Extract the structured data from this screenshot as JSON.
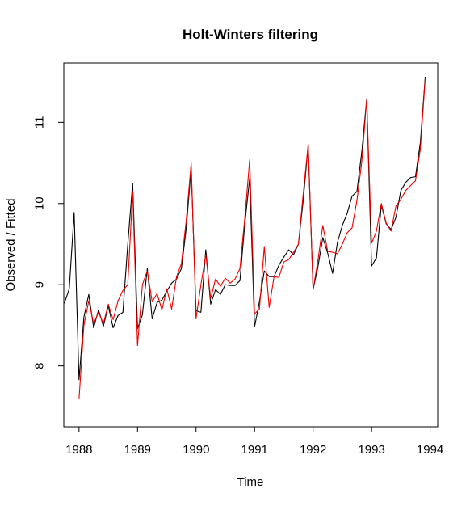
{
  "chart_data": {
    "type": "line",
    "title": "Holt-Winters filtering",
    "xlabel": "Time",
    "ylabel": "Observed / Fitted",
    "xlim": [
      1987.74,
      1994.13
    ],
    "ylim": [
      7.25,
      11.73
    ],
    "x_ticks": [
      1988,
      1989,
      1990,
      1991,
      1992,
      1993,
      1994
    ],
    "y_ticks": [
      8,
      9,
      10,
      11
    ],
    "x_tick_labels": [
      "1988",
      "1989",
      "1990",
      "1991",
      "1992",
      "1993",
      "1994"
    ],
    "y_tick_labels": [
      "8",
      "9",
      "10",
      "11"
    ],
    "grid": false,
    "series": [
      {
        "color": "#000000",
        "x": [
          1987.75,
          1987.8333,
          1987.9167,
          1988.0,
          1988.0833,
          1988.1667,
          1988.25,
          1988.3333,
          1988.4167,
          1988.5,
          1988.5833,
          1988.6667,
          1988.75,
          1988.8333,
          1988.9167,
          1989.0,
          1989.0833,
          1989.1667,
          1989.25,
          1989.3333,
          1989.4167,
          1989.5,
          1989.5833,
          1989.6667,
          1989.75,
          1989.8333,
          1989.9167,
          1990.0,
          1990.0833,
          1990.1667,
          1990.25,
          1990.3333,
          1990.4167,
          1990.5,
          1990.5833,
          1990.6667,
          1990.75,
          1990.8333,
          1990.9167,
          1991.0,
          1991.0833,
          1991.1667,
          1991.25,
          1991.3333,
          1991.4167,
          1991.5,
          1991.5833,
          1991.6667,
          1991.75,
          1991.8333,
          1991.9167,
          1992.0,
          1992.0833,
          1992.1667,
          1992.25,
          1992.3333,
          1992.4167,
          1992.5,
          1992.5833,
          1992.6667,
          1992.75,
          1992.8333,
          1992.9167,
          1993.0,
          1993.0833,
          1993.1667,
          1993.25,
          1993.3333,
          1993.4167,
          1993.5,
          1993.5833,
          1993.6667,
          1993.75,
          1993.8333,
          1993.9167
        ],
        "values": [
          8.77,
          8.95,
          9.89,
          7.83,
          8.6,
          8.88,
          8.47,
          8.69,
          8.49,
          8.74,
          8.47,
          8.62,
          8.66,
          9.5,
          10.25,
          8.46,
          8.63,
          9.2,
          8.58,
          8.78,
          8.81,
          8.92,
          9.02,
          9.07,
          9.2,
          9.7,
          10.44,
          8.68,
          8.66,
          9.43,
          8.76,
          8.94,
          8.88,
          9.0,
          8.99,
          8.99,
          9.05,
          9.75,
          10.31,
          8.48,
          8.79,
          9.17,
          9.1,
          9.1,
          9.24,
          9.34,
          9.43,
          9.37,
          9.5,
          10.05,
          10.72,
          8.94,
          9.22,
          9.58,
          9.39,
          9.14,
          9.52,
          9.73,
          9.88,
          10.09,
          10.15,
          10.64,
          11.29,
          9.23,
          9.33,
          9.98,
          9.75,
          9.68,
          9.83,
          10.16,
          10.26,
          10.32,
          10.33,
          10.75,
          11.56
        ]
      },
      {
        "color": "#ee0000",
        "x": [
          1988.0,
          1988.0833,
          1988.1667,
          1988.25,
          1988.3333,
          1988.4167,
          1988.5,
          1988.5833,
          1988.6667,
          1988.75,
          1988.8333,
          1988.9167,
          1989.0,
          1989.0833,
          1989.1667,
          1989.25,
          1989.3333,
          1989.4167,
          1989.5,
          1989.5833,
          1989.6667,
          1989.75,
          1989.8333,
          1989.9167,
          1990.0,
          1990.0833,
          1990.1667,
          1990.25,
          1990.3333,
          1990.4167,
          1990.5,
          1990.5833,
          1990.6667,
          1990.75,
          1990.8333,
          1990.9167,
          1991.0,
          1991.0833,
          1991.1667,
          1991.25,
          1991.3333,
          1991.4167,
          1991.5,
          1991.5833,
          1991.6667,
          1991.75,
          1991.8333,
          1991.9167,
          1992.0,
          1992.0833,
          1992.1667,
          1992.25,
          1992.3333,
          1992.4167,
          1992.5,
          1992.5833,
          1992.6667,
          1992.75,
          1992.8333,
          1992.9167,
          1993.0,
          1993.0833,
          1993.1667,
          1993.25,
          1993.3333,
          1993.4167,
          1993.5,
          1993.5833,
          1993.6667,
          1993.75,
          1993.8333,
          1993.9167
        ],
        "values": [
          7.59,
          8.5,
          8.8,
          8.52,
          8.66,
          8.52,
          8.76,
          8.57,
          8.8,
          8.93,
          9.0,
          10.15,
          8.25,
          9.0,
          9.17,
          8.79,
          8.89,
          8.69,
          8.95,
          8.7,
          9.1,
          9.26,
          9.8,
          10.5,
          8.58,
          9.0,
          9.37,
          8.83,
          9.07,
          8.98,
          9.08,
          9.02,
          9.07,
          9.2,
          9.82,
          10.54,
          8.64,
          8.7,
          9.47,
          8.72,
          9.1,
          9.09,
          9.28,
          9.31,
          9.4,
          9.5,
          10.13,
          10.73,
          8.94,
          9.3,
          9.73,
          9.41,
          9.4,
          9.38,
          9.5,
          9.64,
          9.7,
          10.04,
          10.52,
          11.28,
          9.51,
          9.66,
          10.0,
          9.76,
          9.66,
          9.97,
          10.05,
          10.16,
          10.22,
          10.28,
          10.67,
          11.53
        ]
      }
    ]
  }
}
